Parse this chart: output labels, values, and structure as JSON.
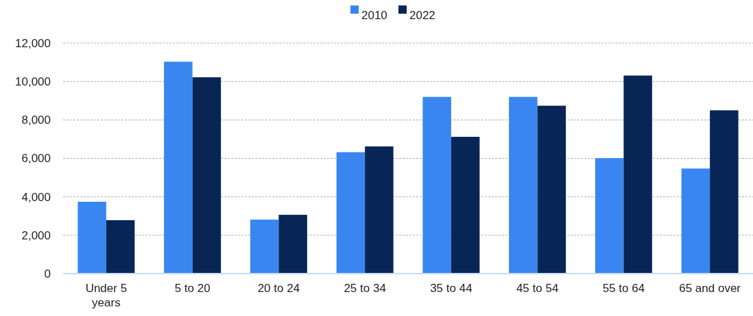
{
  "chart_data": {
    "type": "bar",
    "categories": [
      "Under 5 years",
      "5 to 20",
      "20 to 24",
      "25 to 34",
      "35 to 44",
      "45 to 54",
      "55 to 64",
      "65 and over"
    ],
    "series": [
      {
        "name": "2010",
        "color": "#3a86f0",
        "values": [
          3740,
          11030,
          2810,
          6320,
          9200,
          9200,
          6010,
          5470
        ]
      },
      {
        "name": "2022",
        "color": "#072656",
        "values": [
          2780,
          10220,
          3060,
          6620,
          7120,
          8740,
          10310,
          8500
        ]
      }
    ],
    "ylim": [
      0,
      12000
    ],
    "yticks": [
      {
        "value": 0,
        "label": "0"
      },
      {
        "value": 2000,
        "label": "2,000"
      },
      {
        "value": 4000,
        "label": "4,000"
      },
      {
        "value": 6000,
        "label": "6,000"
      },
      {
        "value": 8000,
        "label": "8,000"
      },
      {
        "value": 10000,
        "label": "10,000"
      },
      {
        "value": 12000,
        "label": "12,000"
      }
    ],
    "grid": "y",
    "legend": "top"
  }
}
